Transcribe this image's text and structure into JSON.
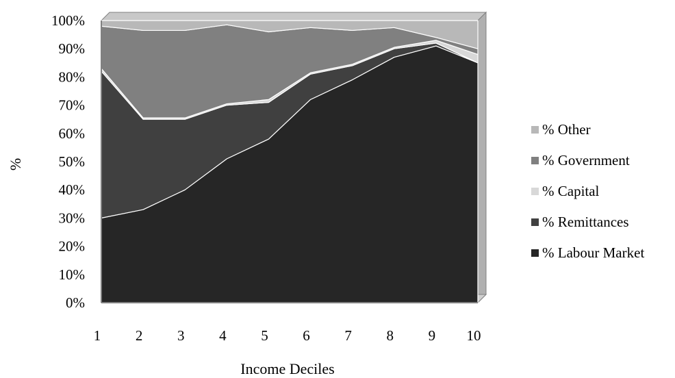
{
  "chart_data": {
    "type": "area",
    "stacked": "percent",
    "xlabel": "Income Deciles",
    "ylabel": "%",
    "ylim": [
      0,
      100
    ],
    "y_ticks": [
      "0%",
      "10%",
      "20%",
      "30%",
      "40%",
      "50%",
      "60%",
      "70%",
      "80%",
      "90%",
      "100%"
    ],
    "categories": [
      "1",
      "2",
      "3",
      "4",
      "5",
      "6",
      "7",
      "8",
      "9",
      "10"
    ],
    "legend_position": "right",
    "grid": false,
    "series": [
      {
        "name": "% Labour Market",
        "color": "#262626",
        "values": [
          30,
          33,
          40,
          51,
          58,
          72,
          79,
          87,
          91,
          85
        ]
      },
      {
        "name": "% Remittances",
        "color": "#404040",
        "values": [
          52,
          32,
          25,
          19,
          13,
          9,
          5,
          3,
          1,
          0
        ]
      },
      {
        "name": "% Capital",
        "color": "#d8d8d8",
        "values": [
          1,
          0.5,
          0.5,
          0.5,
          1,
          0.5,
          0.5,
          0.5,
          1,
          3
        ]
      },
      {
        "name": "% Government",
        "color": "#808080",
        "values": [
          15,
          31,
          31,
          28,
          24,
          16,
          12,
          7,
          1,
          2
        ]
      },
      {
        "name": "% Other",
        "color": "#b8b8b8",
        "values": [
          2,
          3.5,
          3.5,
          1.5,
          4,
          2.5,
          3.5,
          2.5,
          6,
          10
        ]
      }
    ]
  }
}
